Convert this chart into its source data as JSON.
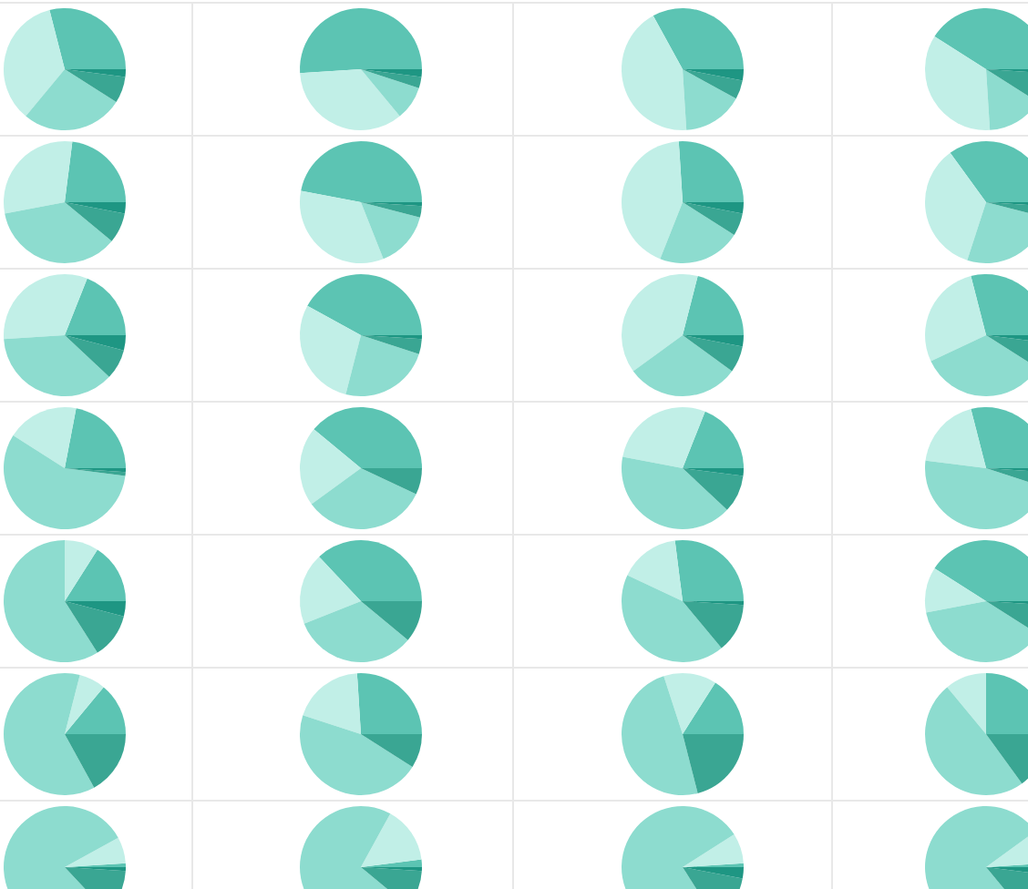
{
  "chart_data": [
    {
      "type": "pie",
      "categories": [
        null,
        null,
        null,
        null,
        null
      ],
      "values": [
        29,
        35,
        27,
        7,
        2
      ],
      "colors": [
        "#5cc4b3",
        "#c1efe7",
        "#8ddccf",
        "#3aa693",
        "#1e9683"
      ]
    },
    {
      "type": "pie",
      "categories": [
        null,
        null,
        null,
        null,
        null
      ],
      "values": [
        51,
        35,
        9,
        3,
        2
      ],
      "colors": [
        "#5cc4b3",
        "#c1efe7",
        "#8ddccf",
        "#3aa693",
        "#1e9683"
      ]
    },
    {
      "type": "pie",
      "categories": [
        null,
        null,
        null,
        null,
        null
      ],
      "values": [
        33,
        43,
        16,
        5,
        3
      ],
      "colors": [
        "#5cc4b3",
        "#c1efe7",
        "#8ddccf",
        "#3aa693",
        "#1e9683"
      ]
    },
    {
      "type": "pie",
      "categories": [
        null,
        null,
        null,
        null,
        null
      ],
      "values": [
        41,
        35,
        15,
        8,
        1
      ],
      "colors": [
        "#5cc4b3",
        "#c1efe7",
        "#8ddccf",
        "#3aa693",
        "#1e9683"
      ]
    },
    {
      "type": "pie",
      "categories": [
        null,
        null,
        null,
        null,
        null
      ],
      "values": [
        23,
        30,
        36,
        8,
        3
      ],
      "colors": [
        "#5cc4b3",
        "#c1efe7",
        "#8ddccf",
        "#3aa693",
        "#1e9683"
      ]
    },
    {
      "type": "pie",
      "categories": [
        null,
        null,
        null,
        null,
        null
      ],
      "values": [
        47,
        34,
        15,
        3,
        1
      ],
      "colors": [
        "#5cc4b3",
        "#c1efe7",
        "#8ddccf",
        "#3aa693",
        "#1e9683"
      ]
    },
    {
      "type": "pie",
      "categories": [
        null,
        null,
        null,
        null,
        null
      ],
      "values": [
        26,
        43,
        22,
        6,
        3
      ],
      "colors": [
        "#5cc4b3",
        "#c1efe7",
        "#8ddccf",
        "#3aa693",
        "#1e9683"
      ]
    },
    {
      "type": "pie",
      "categories": [
        null,
        null,
        null,
        null,
        null
      ],
      "values": [
        35,
        35,
        26,
        3,
        1
      ],
      "colors": [
        "#5cc4b3",
        "#c1efe7",
        "#8ddccf",
        "#3aa693",
        "#1e9683"
      ]
    },
    {
      "type": "pie",
      "categories": [
        null,
        null,
        null,
        null,
        null
      ],
      "values": [
        19,
        32,
        37,
        8,
        4
      ],
      "colors": [
        "#5cc4b3",
        "#c1efe7",
        "#8ddccf",
        "#3aa693",
        "#1e9683"
      ]
    },
    {
      "type": "pie",
      "categories": [
        null,
        null,
        null,
        null,
        null
      ],
      "values": [
        42,
        29,
        24,
        4,
        1
      ],
      "colors": [
        "#5cc4b3",
        "#c1efe7",
        "#8ddccf",
        "#3aa693",
        "#1e9683"
      ]
    },
    {
      "type": "pie",
      "categories": [
        null,
        null,
        null,
        null,
        null
      ],
      "values": [
        21,
        39,
        30,
        7,
        3
      ],
      "colors": [
        "#5cc4b3",
        "#c1efe7",
        "#8ddccf",
        "#3aa693",
        "#1e9683"
      ]
    },
    {
      "type": "pie",
      "categories": [
        null,
        null,
        null,
        null,
        null
      ],
      "values": [
        29,
        28,
        34,
        7,
        2
      ],
      "colors": [
        "#5cc4b3",
        "#c1efe7",
        "#8ddccf",
        "#3aa693",
        "#1e9683"
      ]
    },
    {
      "type": "pie",
      "categories": [
        null,
        null,
        null,
        null,
        null
      ],
      "values": [
        22,
        19,
        57,
        1,
        1
      ],
      "colors": [
        "#5cc4b3",
        "#c1efe7",
        "#8ddccf",
        "#3aa693",
        "#1e9683"
      ]
    },
    {
      "type": "pie",
      "categories": [
        null,
        null,
        null,
        null
      ],
      "values": [
        39,
        21,
        33,
        7
      ],
      "colors": [
        "#5cc4b3",
        "#c1efe7",
        "#8ddccf",
        "#3aa693"
      ]
    },
    {
      "type": "pie",
      "categories": [
        null,
        null,
        null,
        null,
        null
      ],
      "values": [
        19,
        28,
        41,
        10,
        2
      ],
      "colors": [
        "#5cc4b3",
        "#c1efe7",
        "#8ddccf",
        "#3aa693",
        "#1e9683"
      ]
    },
    {
      "type": "pie",
      "categories": [
        null,
        null,
        null,
        null,
        null
      ],
      "values": [
        29,
        19,
        47,
        4,
        1
      ],
      "colors": [
        "#5cc4b3",
        "#c1efe7",
        "#8ddccf",
        "#3aa693",
        "#1e9683"
      ]
    },
    {
      "type": "pie",
      "categories": [
        null,
        null,
        null,
        null,
        null
      ],
      "values": [
        16,
        9,
        59,
        12,
        4
      ],
      "colors": [
        "#5cc4b3",
        "#c1efe7",
        "#8ddccf",
        "#3aa693",
        "#1e9683"
      ]
    },
    {
      "type": "pie",
      "categories": [
        null,
        null,
        null,
        null
      ],
      "values": [
        37,
        19,
        33,
        11
      ],
      "colors": [
        "#5cc4b3",
        "#c1efe7",
        "#8ddccf",
        "#3aa693"
      ]
    },
    {
      "type": "pie",
      "categories": [
        null,
        null,
        null,
        null,
        null
      ],
      "values": [
        27,
        16,
        43,
        13,
        1
      ],
      "colors": [
        "#5cc4b3",
        "#c1efe7",
        "#8ddccf",
        "#3aa693",
        "#1e9683"
      ]
    },
    {
      "type": "pie",
      "categories": [
        null,
        null,
        null,
        null,
        null
      ],
      "values": [
        41,
        12,
        38,
        8,
        1
      ],
      "colors": [
        "#5cc4b3",
        "#c1efe7",
        "#8ddccf",
        "#3aa693",
        "#1e9683"
      ]
    },
    {
      "type": "pie",
      "categories": [
        null,
        null,
        null,
        null
      ],
      "values": [
        14,
        7,
        62,
        17
      ],
      "colors": [
        "#5cc4b3",
        "#c1efe7",
        "#8ddccf",
        "#3aa693"
      ]
    },
    {
      "type": "pie",
      "categories": [
        null,
        null,
        null,
        null
      ],
      "values": [
        26,
        19,
        46,
        9
      ],
      "colors": [
        "#5cc4b3",
        "#c1efe7",
        "#8ddccf",
        "#3aa693"
      ]
    },
    {
      "type": "pie",
      "categories": [
        null,
        null,
        null,
        null
      ],
      "values": [
        16,
        14,
        49,
        21
      ],
      "colors": [
        "#5cc4b3",
        "#c1efe7",
        "#8ddccf",
        "#3aa693"
      ]
    },
    {
      "type": "pie",
      "categories": [
        null,
        null,
        null,
        null
      ],
      "values": [
        25,
        11,
        49,
        15
      ],
      "colors": [
        "#5cc4b3",
        "#c1efe7",
        "#8ddccf",
        "#3aa693"
      ]
    },
    {
      "type": "pie",
      "categories": [
        null,
        null,
        null,
        null,
        null
      ],
      "values": [
        1,
        7,
        79,
        12,
        1
      ],
      "colors": [
        "#5cc4b3",
        "#c1efe7",
        "#8ddccf",
        "#3aa693",
        "#1e9683"
      ]
    },
    {
      "type": "pie",
      "categories": [
        null,
        null,
        null,
        null,
        null
      ],
      "values": [
        2,
        15,
        72,
        10,
        1
      ],
      "colors": [
        "#5cc4b3",
        "#c1efe7",
        "#8ddccf",
        "#3aa693",
        "#1e9683"
      ]
    },
    {
      "type": "pie",
      "categories": [
        null,
        null,
        null,
        null,
        null
      ],
      "values": [
        1,
        8,
        75,
        13,
        3
      ],
      "colors": [
        "#5cc4b3",
        "#c1efe7",
        "#8ddccf",
        "#3aa693",
        "#1e9683"
      ]
    },
    {
      "type": "pie",
      "categories": [
        null,
        null,
        null,
        null,
        null
      ],
      "values": [
        1,
        9,
        76,
        12,
        2
      ],
      "colors": [
        "#5cc4b3",
        "#c1efe7",
        "#8ddccf",
        "#3aa693",
        "#1e9683"
      ]
    }
  ]
}
